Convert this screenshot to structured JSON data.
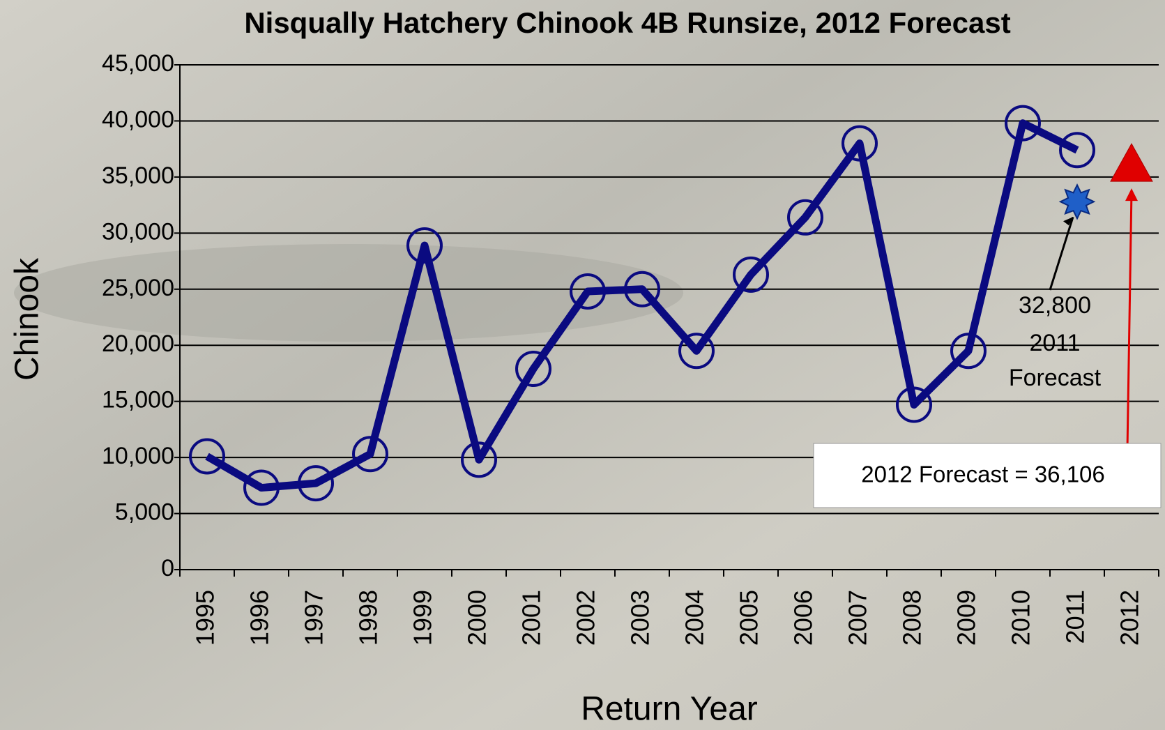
{
  "chart_data": {
    "type": "line",
    "title": "Nisqually Hatchery Chinook  4B Runsize, 2012 Forecast",
    "x_label": "Return Year",
    "y_label": "Chinook",
    "categories": [
      "1995",
      "1996",
      "1997",
      "1998",
      "1999",
      "2000",
      "2001",
      "2002",
      "2003",
      "2004",
      "2005",
      "2006",
      "2007",
      "2008",
      "2009",
      "2010",
      "2011",
      "2012"
    ],
    "values": [
      10100,
      7300,
      7700,
      10300,
      28900,
      9800,
      17900,
      24800,
      25000,
      19500,
      26300,
      31400,
      38000,
      14700,
      19500,
      39800,
      37400,
      null
    ],
    "color": "#0a0a80",
    "ylim": [
      0,
      45000
    ],
    "yticks": [
      0,
      {
        "value": 5000,
        "label": "5,000"
      },
      {
        "value": 10000,
        "label": "10,000"
      },
      {
        "value": 15000,
        "label": "15,000"
      },
      {
        "value": 20000,
        "label": "20,000"
      },
      {
        "value": 25000,
        "label": "25,000"
      },
      {
        "value": 30000,
        "label": "30,000"
      },
      {
        "value": 35000,
        "label": "35,000"
      },
      {
        "value": 40000,
        "label": "40,000"
      },
      {
        "value": 45000,
        "label": "45,000"
      }
    ],
    "grid": true,
    "forecast_2011": {
      "value": 32800,
      "value_label": "32,800",
      "label_lines": [
        "2011",
        "Forecast"
      ],
      "color": "#1f5fc8"
    },
    "forecast_2012": {
      "value": 36106,
      "label": "2012 Forecast = 36,106",
      "color": "#e00000"
    }
  }
}
